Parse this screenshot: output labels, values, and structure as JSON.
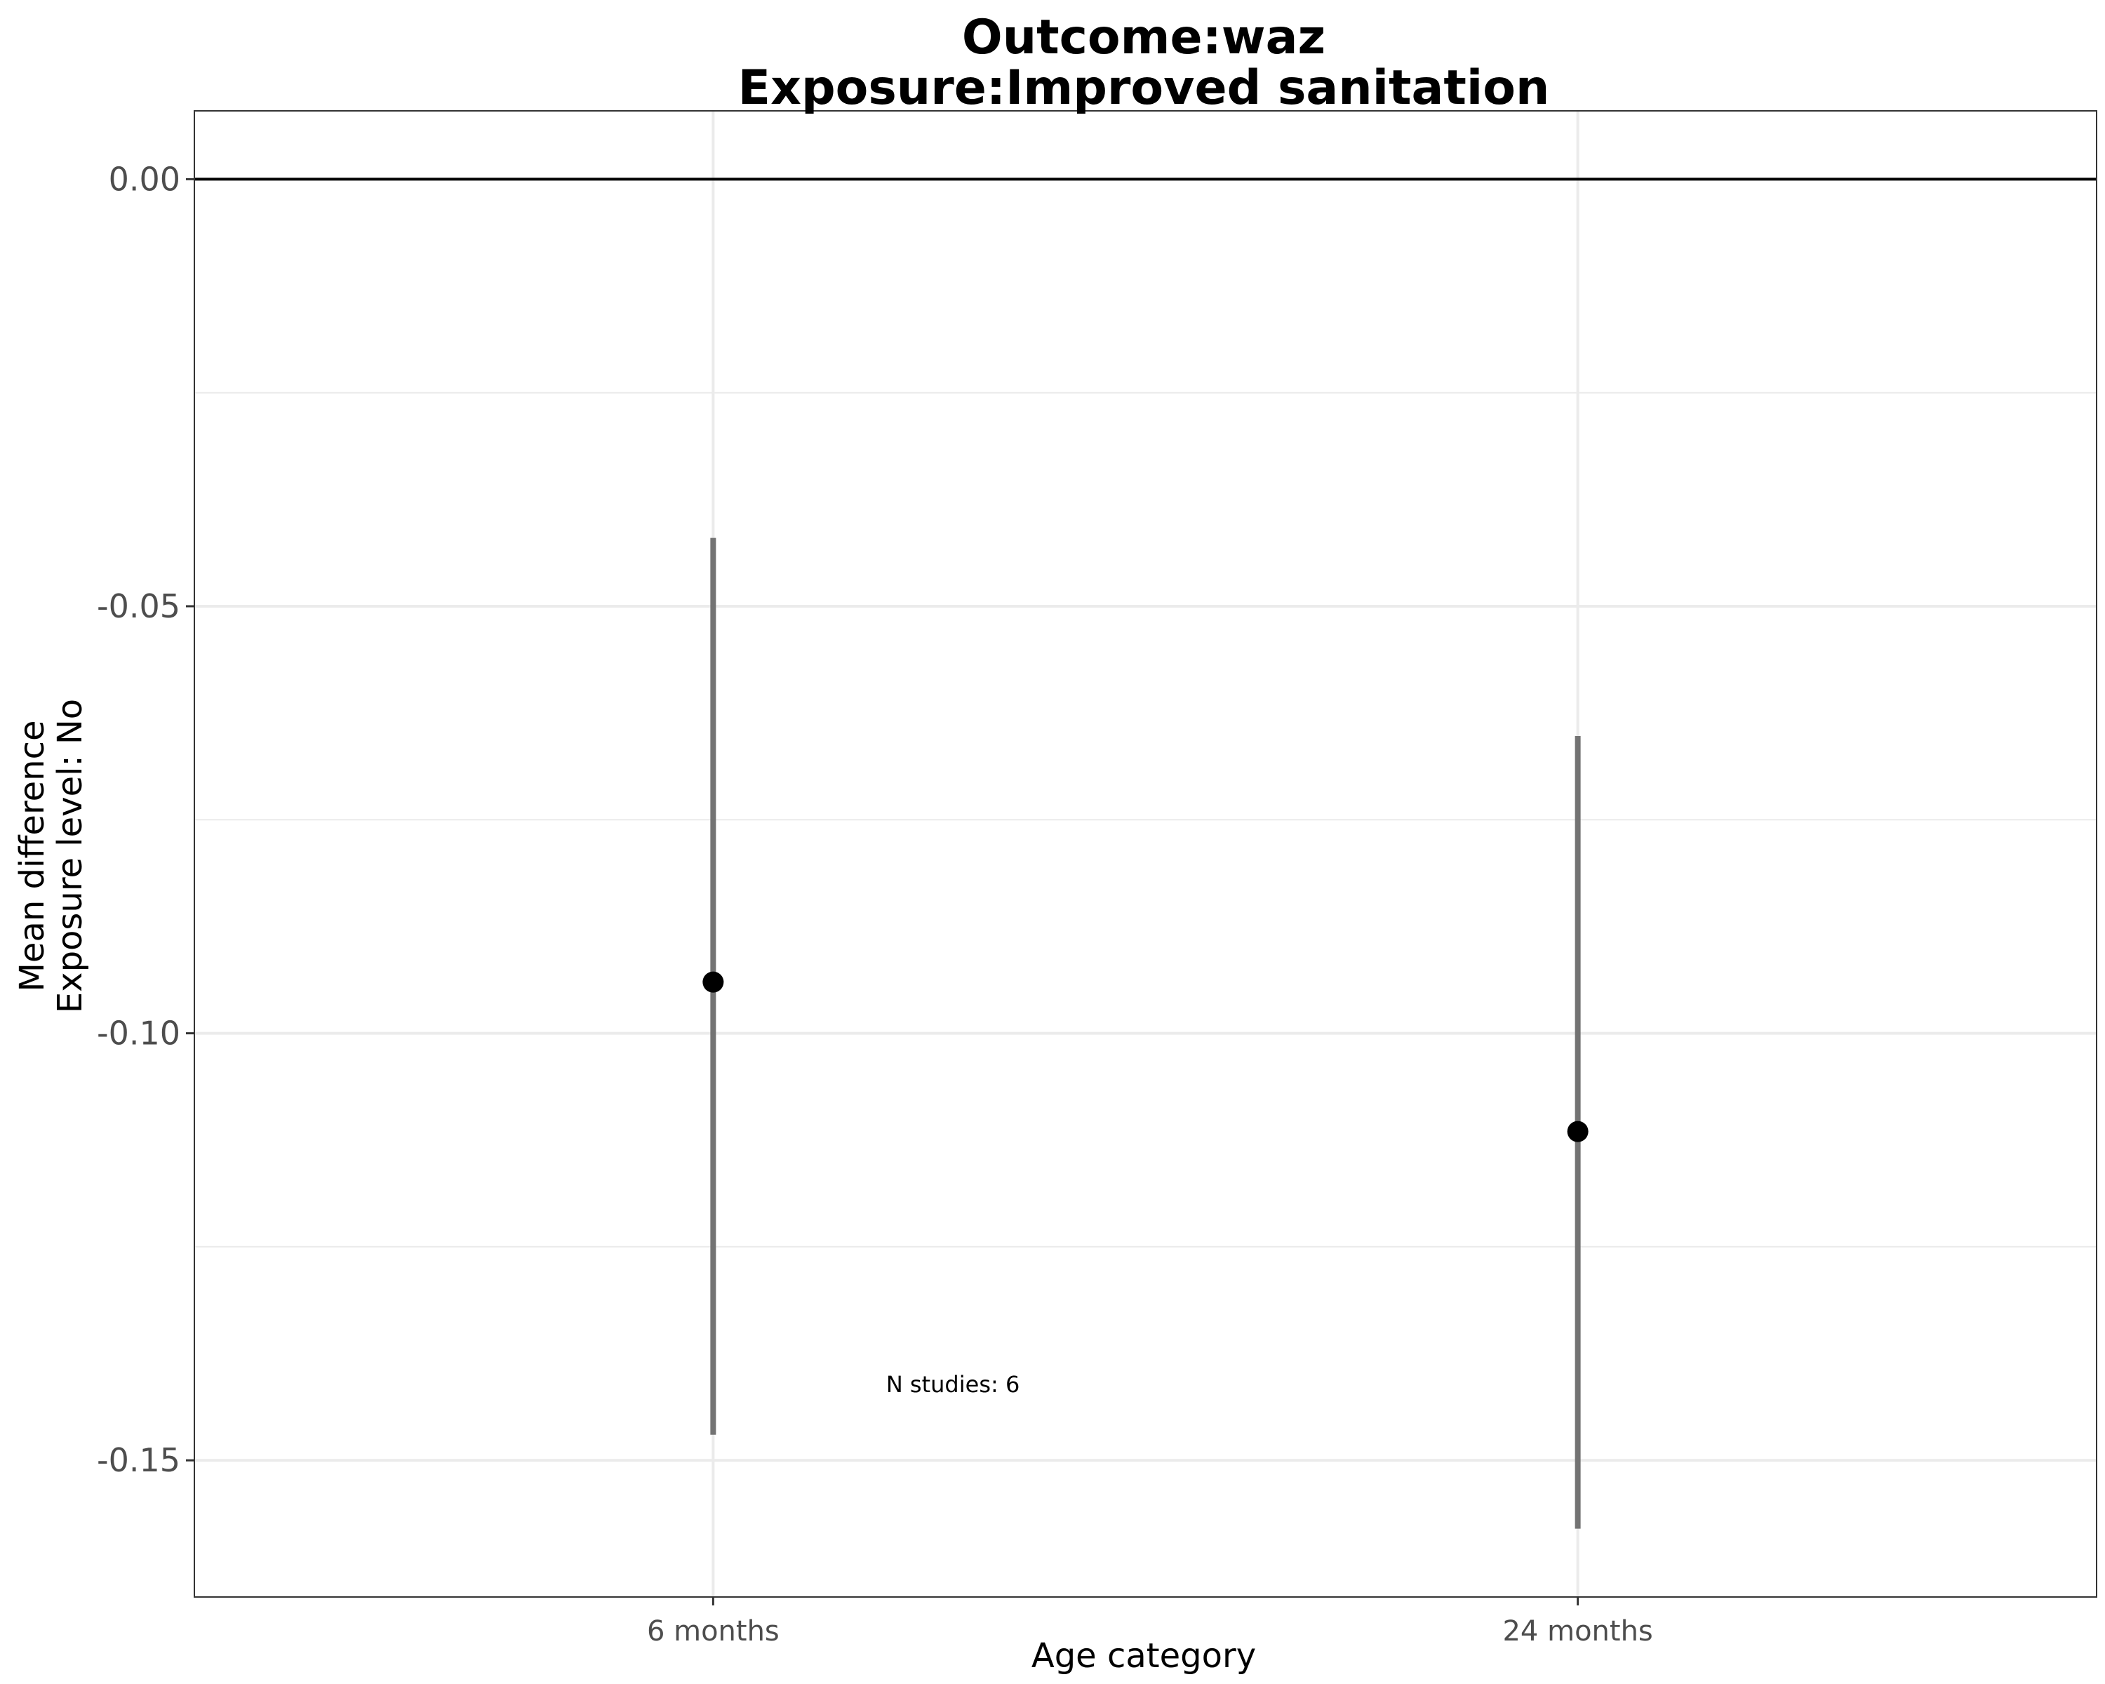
{
  "chart_data": {
    "type": "errorbar",
    "title": "Outcome:waz",
    "subtitle": "Exposure:Improved sanitation",
    "xlabel": "Age category",
    "ylabel": [
      "Mean difference",
      "Exposure level: No"
    ],
    "categories": [
      "6 months",
      "24 months"
    ],
    "estimates": [
      -0.094,
      -0.1115
    ],
    "ci_lower": [
      -0.147,
      -0.158
    ],
    "ci_upper": [
      -0.042,
      -0.0652
    ],
    "ylim": [
      -0.166,
      0.008
    ],
    "yticks": [
      0.0,
      -0.05,
      -0.1,
      -0.15
    ],
    "ytick_labels": [
      "0.00",
      "-0.05",
      "-0.10",
      "-0.15"
    ],
    "reference_line": 0,
    "grid": true,
    "annotations": [
      {
        "text": "N studies: 6",
        "x_between": [
          1,
          2
        ],
        "y": -0.142
      }
    ],
    "colors": {
      "point": "#000000",
      "errorbar": "#737373",
      "grid": "#ebebeb",
      "reference_line": "#000000"
    }
  }
}
